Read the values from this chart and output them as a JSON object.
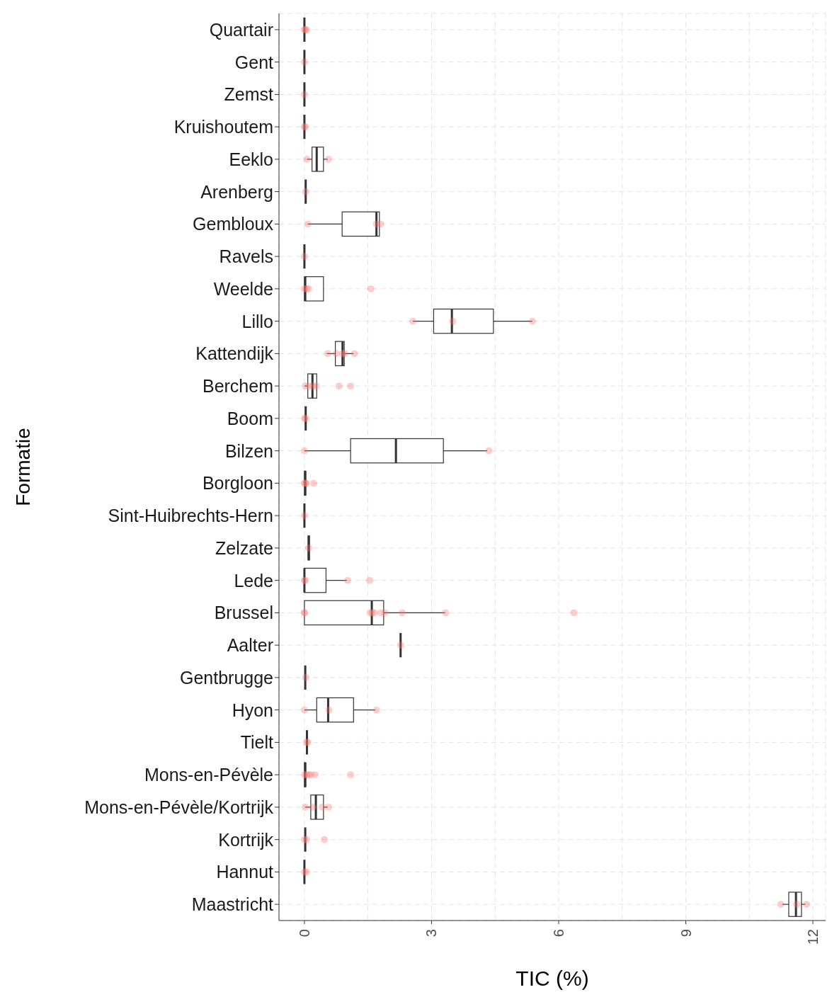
{
  "chart_data": {
    "type": "box",
    "orientation": "horizontal",
    "xlabel": "TIC (%)",
    "ylabel": "Formatie",
    "categories": [
      "Quartair",
      "Gent",
      "Zemst",
      "Kruishoutem",
      "Eeklo",
      "Arenberg",
      "Gembloux",
      "Ravels",
      "Weelde",
      "Lillo",
      "Kattendijk",
      "Berchem",
      "Boom",
      "Bilzen",
      "Borgloon",
      "Sint-Huibrechts-Hern",
      "Zelzate",
      "Lede",
      "Brussel",
      "Aalter",
      "Gentbrugge",
      "Hyon",
      "Tielt",
      "Mons-en-Pévèle",
      "Mons-en-Pévèle/Kortrijk",
      "Kortrijk",
      "Hannut",
      "Maastricht"
    ],
    "xlim": [
      -0.6,
      12.3
    ],
    "xticks": [
      0,
      {
        "value": 1.5,
        "label": null
      },
      3,
      {
        "value": 4.5,
        "label": null
      },
      6,
      {
        "value": 7.5,
        "label": null
      },
      9,
      {
        "value": 10.5,
        "label": null
      },
      12
    ],
    "grid": true,
    "series": [
      {
        "type": "box",
        "color": "#333333",
        "boxes": [
          {
            "low": 0,
            "q1": 0,
            "median": 0,
            "q3": 0,
            "high": 0.02
          },
          {
            "low": 0,
            "q1": 0,
            "median": 0,
            "q3": 0,
            "high": 0
          },
          {
            "low": 0,
            "q1": 0,
            "median": 0,
            "q3": 0,
            "high": 0
          },
          {
            "low": 0,
            "q1": 0,
            "median": 0,
            "q3": 0,
            "high": 0.02
          },
          {
            "low": 0.06,
            "q1": 0.18,
            "median": 0.29,
            "q3": 0.45,
            "high": 0.55
          },
          {
            "low": 0.03,
            "q1": 0.03,
            "median": 0.03,
            "q3": 0.03,
            "high": 0.03
          },
          {
            "low": 0.08,
            "q1": 0.89,
            "median": 1.7,
            "q3": 1.77,
            "high": 1.77
          },
          {
            "low": 0,
            "q1": 0,
            "median": 0,
            "q3": 0,
            "high": 0
          },
          {
            "low": 0,
            "q1": 0,
            "median": 0.02,
            "q3": 0.45,
            "high": 0.45
          },
          {
            "low": 2.56,
            "q1": 3.05,
            "median": 3.48,
            "q3": 4.46,
            "high": 5.38
          },
          {
            "low": 0.53,
            "q1": 0.73,
            "median": 0.9,
            "q3": 0.94,
            "high": 1.16
          },
          {
            "low": 0,
            "q1": 0.08,
            "median": 0.19,
            "q3": 0.29,
            "high": 0.29
          },
          {
            "low": 0.03,
            "q1": 0.03,
            "median": 0.03,
            "q3": 0.03,
            "high": 0.03
          },
          {
            "low": 0,
            "q1": 1.09,
            "median": 2.16,
            "q3": 3.28,
            "high": 4.31
          },
          {
            "low": 0,
            "q1": 0,
            "median": 0.02,
            "q3": 0.03,
            "high": 0.03
          },
          {
            "low": 0,
            "q1": 0,
            "median": 0,
            "q3": 0,
            "high": 0
          },
          {
            "low": 0.08,
            "q1": 0.09,
            "median": 0.1,
            "q3": 0.12,
            "high": 0.12
          },
          {
            "low": 0,
            "q1": 0,
            "median": 0,
            "q3": 0.51,
            "high": 1.0
          },
          {
            "low": 0,
            "q1": 0,
            "median": 1.59,
            "q3": 1.87,
            "high": 3.32
          },
          {
            "low": 2.27,
            "q1": 2.27,
            "median": 2.27,
            "q3": 2.27,
            "high": 2.27
          },
          {
            "low": 0.02,
            "q1": 0.02,
            "median": 0.02,
            "q3": 0.02,
            "high": 0.02
          },
          {
            "low": 0,
            "q1": 0.29,
            "median": 0.56,
            "q3": 1.16,
            "high": 1.67
          },
          {
            "low": 0.06,
            "q1": 0.06,
            "median": 0.06,
            "q3": 0.06,
            "high": 0.06
          },
          {
            "low": 0,
            "q1": 0,
            "median": 0.02,
            "q3": 0.03,
            "high": 0.03
          },
          {
            "low": 0.02,
            "q1": 0.15,
            "median": 0.27,
            "q3": 0.45,
            "high": 0.55
          },
          {
            "low": 0.02,
            "q1": 0.02,
            "median": 0.02,
            "q3": 0.02,
            "high": 0.02
          },
          {
            "low": 0,
            "q1": 0,
            "median": 0,
            "q3": 0,
            "high": 0
          },
          {
            "low": 11.28,
            "q1": 11.43,
            "median": 11.6,
            "q3": 11.73,
            "high": 11.82
          }
        ]
      },
      {
        "type": "scatter",
        "color": "#f8766d",
        "x": [
          "Quartair",
          "Quartair",
          "Quartair",
          "Gent",
          "Zemst",
          "Kruishoutem",
          "Kruishoutem",
          "Eeklo",
          "Eeklo",
          "Arenberg",
          "Gembloux",
          "Gembloux",
          "Gembloux",
          "Ravels",
          "Weelde",
          "Weelde",
          "Weelde",
          "Weelde",
          "Lillo",
          "Lillo",
          "Lillo",
          "Kattendijk",
          "Kattendijk",
          "Kattendijk",
          "Kattendijk",
          "Kattendijk",
          "Berchem",
          "Berchem",
          "Berchem",
          "Berchem",
          "Berchem",
          "Berchem",
          "Boom",
          "Boom",
          "Bilzen",
          "Bilzen",
          "Borgloon",
          "Borgloon",
          "Borgloon",
          "Borgloon",
          "Sint-Huibrechts-Hern",
          "Zelzate",
          "Lede",
          "Lede",
          "Lede",
          "Lede",
          "Brussel",
          "Brussel",
          "Brussel",
          "Brussel",
          "Brussel",
          "Brussel",
          "Brussel",
          "Brussel",
          "Brussel",
          "Brussel",
          "Aalter",
          "Gentbrugge",
          "Hyon",
          "Hyon",
          "Hyon",
          "Tielt",
          "Tielt",
          "Mons-en-Pévèle",
          "Mons-en-Pévèle",
          "Mons-en-Pévèle",
          "Mons-en-Pévèle",
          "Mons-en-Pévèle",
          "Mons-en-Pévèle",
          "Mons-en-Pévèle/Kortrijk",
          "Mons-en-Pévèle/Kortrijk",
          "Mons-en-Pévèle/Kortrijk",
          "Mons-en-Pévèle/Kortrijk",
          "Kortrijk",
          "Kortrijk",
          "Kortrijk",
          "Hannut",
          "Hannut",
          "Maastricht",
          "Maastricht",
          "Maastricht"
        ],
        "values": [
          0,
          0.02,
          0.05,
          0,
          0,
          0,
          0.02,
          0.06,
          0.57,
          0.03,
          0.08,
          1.7,
          1.8,
          0,
          0,
          0.05,
          0.1,
          1.57,
          2.56,
          3.5,
          5.38,
          0.55,
          0.75,
          0.9,
          0.95,
          1.18,
          0.02,
          0.1,
          0.2,
          0.28,
          0.82,
          1.09,
          0,
          0.03,
          0,
          4.35,
          0,
          0.02,
          0.05,
          0.22,
          0,
          0.1,
          0,
          0.02,
          1.02,
          1.54,
          0,
          0,
          1.55,
          1.6,
          1.65,
          1.8,
          1.9,
          2.31,
          3.33,
          6.36,
          2.27,
          0.03,
          0,
          0.58,
          1.7,
          0.05,
          0.08,
          0,
          0.05,
          0.1,
          0.15,
          0.25,
          1.09,
          0.02,
          0.2,
          0.42,
          0.57,
          0,
          0.05,
          0.47,
          0,
          0.05,
          11.24,
          11.62,
          11.85
        ]
      }
    ]
  }
}
